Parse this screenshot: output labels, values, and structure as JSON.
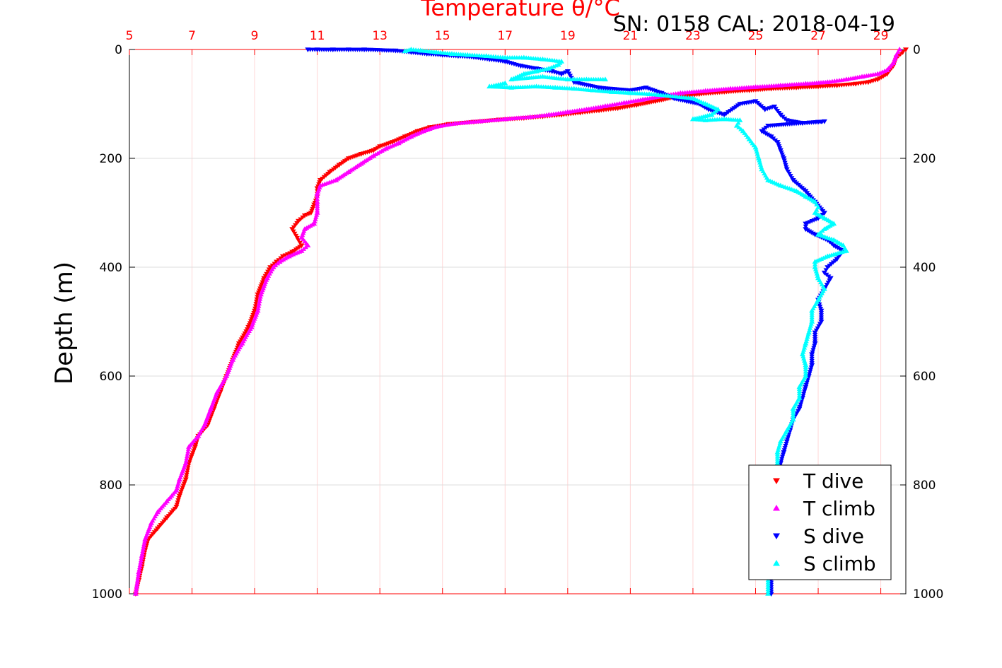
{
  "chart_data": {
    "type": "scatter",
    "title": "Temperature θ/°C",
    "subtitle": "SN: 0158  CAL: 2018-04-19",
    "xlabel": "",
    "ylabel": "Depth (m)",
    "xlim": [
      5,
      29.8
    ],
    "ylim": [
      0,
      1000
    ],
    "y_reversed": true,
    "x_axis_position": "top",
    "x_ticks": [
      "5",
      "7",
      "9",
      "11",
      "13",
      "15",
      "17",
      "19",
      "21",
      "23",
      "25",
      "27",
      "29"
    ],
    "y_ticks_left": [
      "0",
      "200",
      "400",
      "600",
      "800",
      "1000"
    ],
    "y_ticks_right": [
      "0",
      "200",
      "400",
      "600",
      "800",
      "1000"
    ],
    "grid": true,
    "legend_position": "bottom-right",
    "series": [
      {
        "name": "T dive",
        "color": "#ff0000",
        "marker": "triangle-down",
        "points": [
          [
            29.8,
            0
          ],
          [
            29.7,
            5
          ],
          [
            29.5,
            15
          ],
          [
            29.4,
            30
          ],
          [
            29.2,
            45
          ],
          [
            28.9,
            55
          ],
          [
            28.6,
            60
          ],
          [
            28.2,
            63
          ],
          [
            27.6,
            66
          ],
          [
            27.0,
            68
          ],
          [
            26.3,
            70
          ],
          [
            25.5,
            72
          ],
          [
            24.8,
            75
          ],
          [
            24.0,
            78
          ],
          [
            23.2,
            82
          ],
          [
            22.4,
            88
          ],
          [
            21.8,
            95
          ],
          [
            21.2,
            102
          ],
          [
            20.6,
            108
          ],
          [
            20.0,
            112
          ],
          [
            19.4,
            116
          ],
          [
            18.8,
            120
          ],
          [
            18.2,
            123
          ],
          [
            17.6,
            126
          ],
          [
            16.8,
            129
          ],
          [
            16.0,
            133
          ],
          [
            15.2,
            137
          ],
          [
            14.6,
            143
          ],
          [
            14.2,
            150
          ],
          [
            13.8,
            160
          ],
          [
            13.4,
            170
          ],
          [
            13.0,
            178
          ],
          [
            12.8,
            185
          ],
          [
            12.4,
            192
          ],
          [
            12.0,
            200
          ],
          [
            11.7,
            212
          ],
          [
            11.4,
            225
          ],
          [
            11.1,
            240
          ],
          [
            11.0,
            255
          ],
          [
            11.0,
            270
          ],
          [
            10.9,
            285
          ],
          [
            10.8,
            300
          ],
          [
            10.6,
            305
          ],
          [
            10.4,
            315
          ],
          [
            10.2,
            330
          ],
          [
            10.4,
            350
          ],
          [
            10.5,
            360
          ],
          [
            10.2,
            372
          ],
          [
            9.9,
            380
          ],
          [
            9.7,
            390
          ],
          [
            9.5,
            400
          ],
          [
            9.3,
            420
          ],
          [
            9.1,
            450
          ],
          [
            9.0,
            480
          ],
          [
            8.8,
            510
          ],
          [
            8.5,
            540
          ],
          [
            8.3,
            570
          ],
          [
            8.1,
            600
          ],
          [
            7.9,
            630
          ],
          [
            7.7,
            660
          ],
          [
            7.5,
            690
          ],
          [
            7.2,
            710
          ],
          [
            7.1,
            730
          ],
          [
            6.9,
            760
          ],
          [
            6.8,
            790
          ],
          [
            6.6,
            820
          ],
          [
            6.5,
            840
          ],
          [
            6.2,
            860
          ],
          [
            5.9,
            880
          ],
          [
            5.6,
            900
          ],
          [
            5.5,
            920
          ],
          [
            5.4,
            950
          ],
          [
            5.3,
            975
          ],
          [
            5.2,
            1000
          ]
        ]
      },
      {
        "name": "T climb",
        "color": "#ff00ff",
        "marker": "triangle-up",
        "points": [
          [
            29.6,
            0
          ],
          [
            29.5,
            10
          ],
          [
            29.4,
            25
          ],
          [
            29.2,
            38
          ],
          [
            28.9,
            45
          ],
          [
            28.4,
            50
          ],
          [
            27.9,
            55
          ],
          [
            27.3,
            60
          ],
          [
            26.6,
            63
          ],
          [
            25.8,
            66
          ],
          [
            25.0,
            69
          ],
          [
            24.2,
            72
          ],
          [
            23.4,
            76
          ],
          [
            22.6,
            80
          ],
          [
            22.0,
            86
          ],
          [
            21.4,
            92
          ],
          [
            20.8,
            98
          ],
          [
            20.2,
            104
          ],
          [
            19.6,
            110
          ],
          [
            19.0,
            115
          ],
          [
            18.4,
            120
          ],
          [
            17.8,
            124
          ],
          [
            17.0,
            128
          ],
          [
            16.2,
            132
          ],
          [
            15.4,
            136
          ],
          [
            14.8,
            142
          ],
          [
            14.4,
            150
          ],
          [
            14.0,
            160
          ],
          [
            13.6,
            172
          ],
          [
            13.2,
            182
          ],
          [
            12.8,
            195
          ],
          [
            12.4,
            210
          ],
          [
            12.0,
            225
          ],
          [
            11.6,
            240
          ],
          [
            11.1,
            250
          ],
          [
            11.0,
            265
          ],
          [
            11.0,
            280
          ],
          [
            11.0,
            300
          ],
          [
            10.9,
            320
          ],
          [
            10.6,
            330
          ],
          [
            10.5,
            345
          ],
          [
            10.7,
            360
          ],
          [
            10.5,
            370
          ],
          [
            10.1,
            380
          ],
          [
            9.8,
            390
          ],
          [
            9.6,
            400
          ],
          [
            9.4,
            420
          ],
          [
            9.2,
            450
          ],
          [
            9.1,
            480
          ],
          [
            8.9,
            510
          ],
          [
            8.6,
            540
          ],
          [
            8.3,
            570
          ],
          [
            8.1,
            600
          ],
          [
            7.8,
            630
          ],
          [
            7.6,
            660
          ],
          [
            7.4,
            690
          ],
          [
            7.2,
            710
          ],
          [
            6.9,
            730
          ],
          [
            6.8,
            760
          ],
          [
            6.6,
            790
          ],
          [
            6.5,
            810
          ],
          [
            6.2,
            830
          ],
          [
            5.9,
            850
          ],
          [
            5.7,
            870
          ],
          [
            5.5,
            900
          ],
          [
            5.4,
            930
          ],
          [
            5.3,
            960
          ],
          [
            5.2,
            1000
          ]
        ]
      },
      {
        "name": "S dive",
        "color": "#0000ff",
        "marker": "triangle-down",
        "points": [
          [
            10.7,
            0
          ],
          [
            11.0,
            0
          ],
          [
            11.5,
            0
          ],
          [
            12.0,
            0
          ],
          [
            12.5,
            0
          ],
          [
            13.5,
            2
          ],
          [
            14.0,
            5
          ],
          [
            14.5,
            8
          ],
          [
            15.0,
            10
          ],
          [
            15.5,
            12
          ],
          [
            16.0,
            14
          ],
          [
            16.5,
            18
          ],
          [
            17.0,
            22
          ],
          [
            17.5,
            30
          ],
          [
            18.0,
            35
          ],
          [
            18.5,
            40
          ],
          [
            18.8,
            45
          ],
          [
            19.0,
            40
          ],
          [
            19.2,
            60
          ],
          [
            20.0,
            70
          ],
          [
            21.0,
            75
          ],
          [
            21.5,
            70
          ],
          [
            22.0,
            80
          ],
          [
            22.4,
            90
          ],
          [
            22.8,
            95
          ],
          [
            23.2,
            100
          ],
          [
            23.5,
            110
          ],
          [
            24.0,
            120
          ],
          [
            24.5,
            100
          ],
          [
            25.0,
            95
          ],
          [
            25.3,
            110
          ],
          [
            25.6,
            105
          ],
          [
            25.8,
            120
          ],
          [
            26.0,
            130
          ],
          [
            26.5,
            135
          ],
          [
            27.0,
            133
          ],
          [
            27.2,
            132
          ],
          [
            25.4,
            140
          ],
          [
            25.2,
            150
          ],
          [
            25.5,
            160
          ],
          [
            25.7,
            170
          ],
          [
            25.8,
            185
          ],
          [
            25.9,
            200
          ],
          [
            26.0,
            220
          ],
          [
            26.2,
            240
          ],
          [
            26.6,
            260
          ],
          [
            26.9,
            280
          ],
          [
            27.2,
            300
          ],
          [
            27.0,
            310
          ],
          [
            26.6,
            320
          ],
          [
            26.6,
            330
          ],
          [
            26.9,
            340
          ],
          [
            27.3,
            350
          ],
          [
            27.5,
            360
          ],
          [
            27.8,
            370
          ],
          [
            27.6,
            385
          ],
          [
            27.3,
            400
          ],
          [
            27.2,
            410
          ],
          [
            27.4,
            420
          ],
          [
            27.2,
            440
          ],
          [
            27.0,
            460
          ],
          [
            27.1,
            480
          ],
          [
            27.1,
            500
          ],
          [
            26.9,
            520
          ],
          [
            26.9,
            540
          ],
          [
            26.8,
            560
          ],
          [
            26.8,
            580
          ],
          [
            26.7,
            600
          ],
          [
            26.6,
            620
          ],
          [
            26.5,
            640
          ],
          [
            26.4,
            660
          ],
          [
            26.2,
            680
          ],
          [
            26.1,
            700
          ],
          [
            26.0,
            720
          ],
          [
            25.9,
            740
          ],
          [
            25.8,
            760
          ],
          [
            25.7,
            780
          ],
          [
            25.7,
            800
          ],
          [
            25.6,
            850
          ],
          [
            25.5,
            900
          ],
          [
            25.5,
            950
          ],
          [
            25.5,
            1000
          ]
        ]
      },
      {
        "name": "S climb",
        "color": "#00ffff",
        "marker": "triangle-up",
        "points": [
          [
            13.8,
            3
          ],
          [
            14.0,
            0
          ],
          [
            14.3,
            2
          ],
          [
            14.8,
            5
          ],
          [
            15.3,
            8
          ],
          [
            15.8,
            10
          ],
          [
            16.4,
            12
          ],
          [
            17.0,
            15
          ],
          [
            17.6,
            15
          ],
          [
            18.2,
            18
          ],
          [
            18.8,
            22
          ],
          [
            18.7,
            28
          ],
          [
            18.4,
            35
          ],
          [
            18.0,
            40
          ],
          [
            17.6,
            45
          ],
          [
            17.2,
            55
          ],
          [
            18.2,
            50
          ],
          [
            19.0,
            55
          ],
          [
            19.6,
            55
          ],
          [
            20.2,
            55
          ],
          [
            17.0,
            62
          ],
          [
            16.5,
            68
          ],
          [
            17.2,
            70
          ],
          [
            18.0,
            68
          ],
          [
            18.6,
            70
          ],
          [
            19.2,
            72
          ],
          [
            19.8,
            75
          ],
          [
            20.4,
            78
          ],
          [
            21.0,
            80
          ],
          [
            21.6,
            82
          ],
          [
            22.2,
            85
          ],
          [
            23.0,
            90
          ],
          [
            23.4,
            100
          ],
          [
            23.8,
            110
          ],
          [
            23.6,
            120
          ],
          [
            23.0,
            128
          ],
          [
            23.4,
            130
          ],
          [
            24.0,
            128
          ],
          [
            24.5,
            130
          ],
          [
            24.4,
            140
          ],
          [
            24.6,
            150
          ],
          [
            24.8,
            165
          ],
          [
            25.0,
            180
          ],
          [
            25.1,
            200
          ],
          [
            25.2,
            220
          ],
          [
            25.4,
            240
          ],
          [
            25.8,
            250
          ],
          [
            26.3,
            260
          ],
          [
            26.6,
            270
          ],
          [
            26.9,
            280
          ],
          [
            27.0,
            290
          ],
          [
            26.9,
            300
          ],
          [
            27.2,
            310
          ],
          [
            27.5,
            320
          ],
          [
            27.2,
            330
          ],
          [
            27.0,
            340
          ],
          [
            27.5,
            350
          ],
          [
            27.8,
            360
          ],
          [
            27.9,
            370
          ],
          [
            27.3,
            380
          ],
          [
            26.9,
            390
          ],
          [
            26.9,
            400
          ],
          [
            27.0,
            420
          ],
          [
            27.2,
            440
          ],
          [
            27.0,
            460
          ],
          [
            26.8,
            480
          ],
          [
            26.8,
            500
          ],
          [
            26.7,
            520
          ],
          [
            26.6,
            540
          ],
          [
            26.5,
            560
          ],
          [
            26.6,
            580
          ],
          [
            26.6,
            600
          ],
          [
            26.4,
            620
          ],
          [
            26.4,
            640
          ],
          [
            26.2,
            660
          ],
          [
            26.2,
            680
          ],
          [
            26.0,
            700
          ],
          [
            25.8,
            720
          ],
          [
            25.7,
            740
          ],
          [
            25.7,
            760
          ],
          [
            25.6,
            800
          ],
          [
            25.5,
            850
          ],
          [
            25.5,
            900
          ],
          [
            25.4,
            950
          ],
          [
            25.4,
            1000
          ]
        ]
      }
    ]
  }
}
